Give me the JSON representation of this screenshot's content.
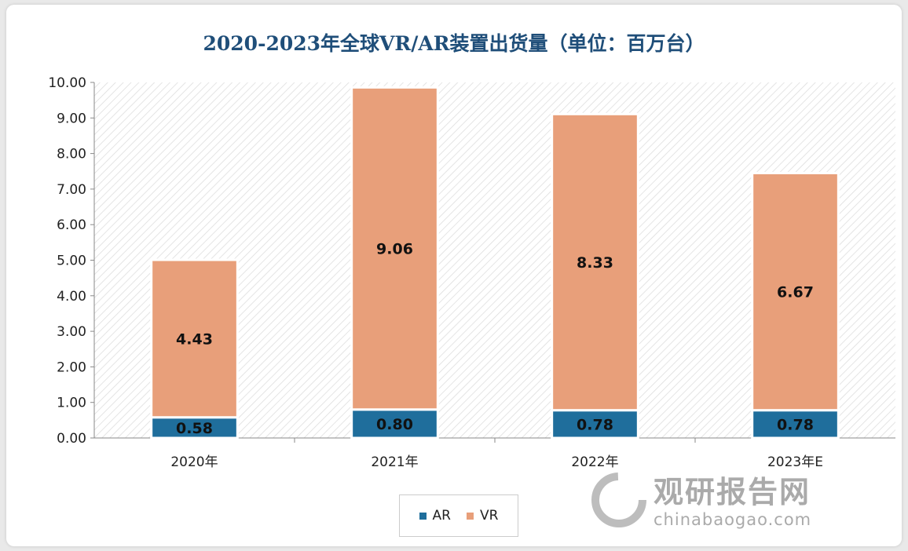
{
  "chart_data": {
    "type": "bar",
    "stacked": true,
    "title": "2020-2023年全球VR/AR装置出货量（单位：百万台）",
    "categories": [
      "2020年",
      "2021年",
      "2022年",
      "2023年E"
    ],
    "series": [
      {
        "name": "AR",
        "values": [
          0.58,
          0.8,
          0.78,
          0.78
        ],
        "color": "#1f6e9c"
      },
      {
        "name": "VR",
        "values": [
          4.43,
          9.06,
          8.33,
          6.67
        ],
        "color": "#e89f7a"
      }
    ],
    "yticks": [
      "0.00",
      "1.00",
      "2.00",
      "3.00",
      "4.00",
      "5.00",
      "6.00",
      "7.00",
      "8.00",
      "9.00",
      "10.00"
    ],
    "ylim": [
      0,
      10
    ],
    "xlabel": "",
    "ylabel": "",
    "legend": "bottom",
    "grid": false
  },
  "watermark": {
    "cn": "观研报告网",
    "en": "chinabaogao.com"
  }
}
